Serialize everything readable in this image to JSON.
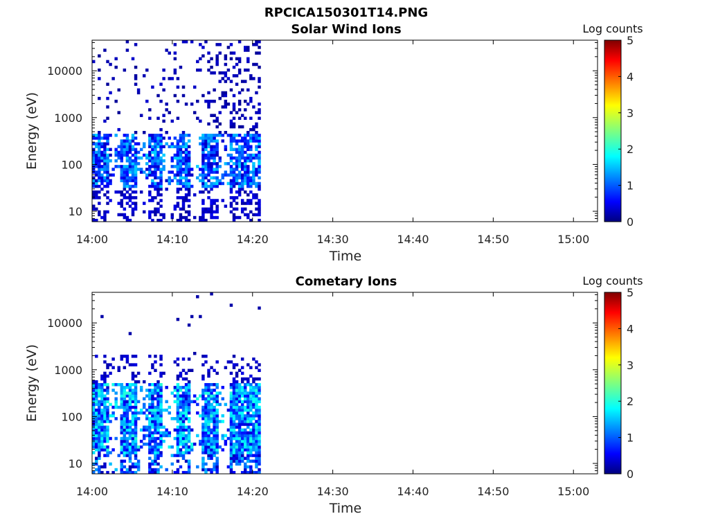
{
  "figure": {
    "title": "RPCICA150301T14.PNG"
  },
  "colors": {
    "colormap": [
      "#00007f",
      "#0000ff",
      "#007fff",
      "#00ffff",
      "#7fff7f",
      "#ffff00",
      "#ff7f00",
      "#ff0000",
      "#7f0000"
    ],
    "frame": "#000000"
  },
  "chart_data": [
    {
      "type": "heatmap",
      "title": "Solar Wind Ions",
      "xlabel": "Time",
      "ylabel": "Energy (eV)",
      "x_ticks": [
        "14:00",
        "14:10",
        "14:20",
        "14:30",
        "14:40",
        "14:50",
        "15:00"
      ],
      "y_ticks": [
        "10",
        "100",
        "1000",
        "10000"
      ],
      "y_scale": "log",
      "y_range_eV": [
        6,
        45000
      ],
      "x_range_min": [
        0,
        63
      ],
      "colorbar": {
        "title": "Log counts",
        "ticks": [
          "0",
          "1",
          "2",
          "3",
          "4",
          "5"
        ],
        "range": [
          0,
          5
        ]
      },
      "data_extent_min": [
        0,
        21
      ],
      "peak_log_counts": 2.5
    },
    {
      "type": "heatmap",
      "title": "Cometary Ions",
      "xlabel": "Time",
      "ylabel": "Energy (eV)",
      "x_ticks": [
        "14:00",
        "14:10",
        "14:20",
        "14:30",
        "14:40",
        "14:50",
        "15:00"
      ],
      "y_ticks": [
        "10",
        "100",
        "1000",
        "10000"
      ],
      "y_scale": "log",
      "y_range_eV": [
        6,
        45000
      ],
      "x_range_min": [
        0,
        63
      ],
      "colorbar": {
        "title": "Log counts",
        "ticks": [
          "0",
          "1",
          "2",
          "3",
          "4",
          "5"
        ],
        "range": [
          0,
          5
        ]
      },
      "data_extent_min": [
        0,
        21
      ],
      "peak_log_counts": 2.8
    }
  ]
}
